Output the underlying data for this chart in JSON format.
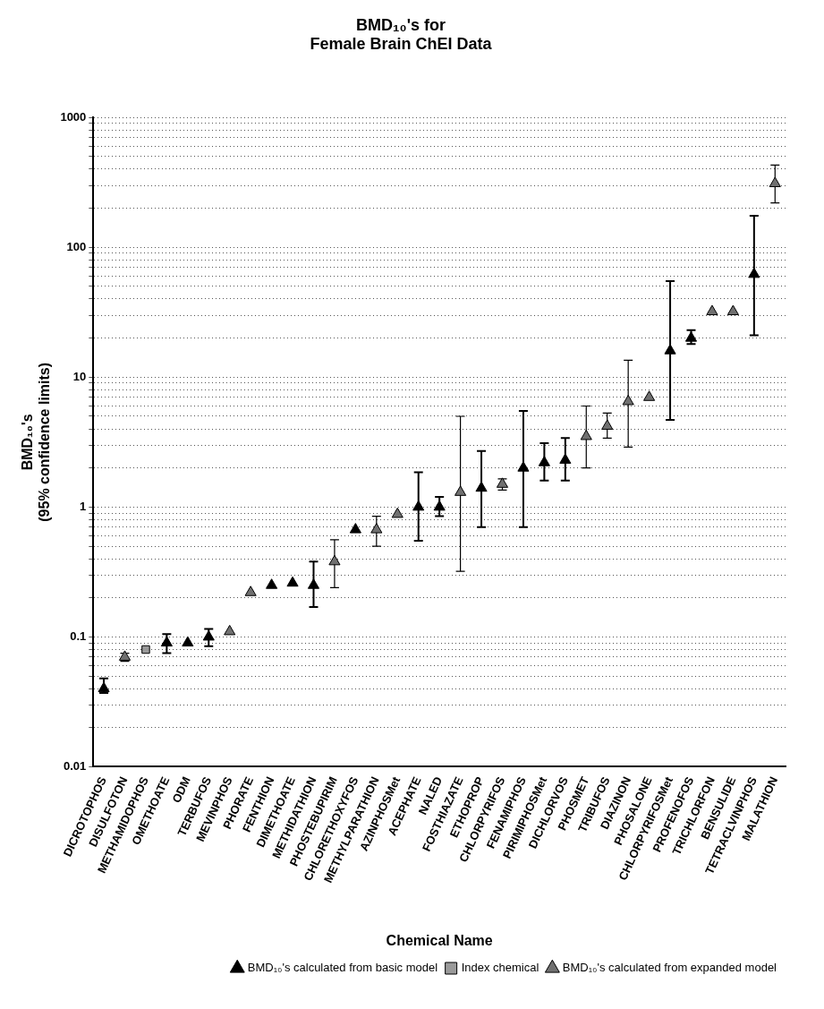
{
  "chart_data": {
    "type": "scatter",
    "title": "BMD₁₀'s for\nFemale Brain ChEI Data",
    "xlabel": "Chemical Name",
    "ylabel": "BMD₁₀'s\n(95% confidence limits)",
    "categories": [
      "DICROTOPHOS",
      "DISULFOTON",
      "METHAMIDOPHOS",
      "OMETHOATE",
      "ODM",
      "TERBUFOS",
      "MEVINPHOS",
      "PHORATE",
      "FENTHION",
      "DIMETHOATE",
      "METHIDATHION",
      "PHOSTEBUPIRIM",
      "CHLORETHOXYFOS",
      "METHYLPARATHION",
      "AZINPHOSMet",
      "ACEPHATE",
      "NALED",
      "FOSTHIAZATE",
      "ETHOPROP",
      "CHLORPYRIFOS",
      "FENAMIPHOS",
      "PIRIMIPHOSMet",
      "DICHLORVOS",
      "PHOSMET",
      "TRIBUFOS",
      "DIAZINON",
      "PHOSALONE",
      "CHLORPYRIFOSMet",
      "PROFENOFOS",
      "TRICHLORFON",
      "BENSULIDE",
      "TETRACLVINPHOS",
      "MALATHION"
    ],
    "series": [
      {
        "name": "BMD₁₀'s calculated from basic model",
        "color": "#000000",
        "marker": "triangle",
        "values": [
          0.04,
          null,
          null,
          0.09,
          0.09,
          0.1,
          null,
          null,
          0.25,
          0.26,
          0.25,
          null,
          0.67,
          null,
          null,
          1.0,
          1.0,
          null,
          1.4,
          null,
          2.0,
          2.2,
          2.3,
          null,
          null,
          null,
          null,
          16,
          20,
          null,
          null,
          62,
          null
        ],
        "errors": [
          [
            0.037,
            0.048
          ],
          null,
          null,
          [
            0.075,
            0.105
          ],
          null,
          [
            0.085,
            0.115
          ],
          null,
          null,
          null,
          null,
          [
            0.17,
            0.38
          ],
          null,
          null,
          null,
          null,
          [
            0.55,
            1.85
          ],
          [
            0.85,
            1.2
          ],
          null,
          [
            0.7,
            2.7
          ],
          null,
          [
            0.7,
            5.5
          ],
          [
            1.6,
            3.1
          ],
          [
            1.6,
            3.4
          ],
          null,
          null,
          null,
          null,
          [
            4.7,
            55
          ],
          [
            18,
            23
          ],
          null,
          null,
          [
            21,
            175
          ],
          null
        ]
      },
      {
        "name": "Index chemical",
        "color": "#9a9a9a",
        "marker": "square",
        "values": [
          null,
          null,
          0.08,
          null,
          null,
          null,
          null,
          null,
          null,
          null,
          null,
          null,
          null,
          null,
          null,
          null,
          null,
          null,
          null,
          null,
          null,
          null,
          null,
          null,
          null,
          null,
          null,
          null,
          null,
          null,
          null,
          null,
          null
        ]
      },
      {
        "name": "BMD₁₀'s calculated from expanded model",
        "color": "#707070",
        "marker": "triangle",
        "values": [
          null,
          0.07,
          null,
          null,
          null,
          null,
          0.11,
          0.22,
          null,
          null,
          null,
          0.38,
          null,
          0.67,
          0.88,
          null,
          null,
          1.3,
          null,
          1.5,
          null,
          null,
          null,
          3.5,
          4.2,
          6.5,
          7,
          null,
          null,
          32,
          32,
          null,
          310
        ],
        "errors": [
          null,
          [
            0.065,
            0.075
          ],
          null,
          null,
          null,
          null,
          null,
          null,
          null,
          null,
          null,
          [
            0.24,
            0.56
          ],
          null,
          [
            0.5,
            0.85
          ],
          null,
          null,
          null,
          [
            0.32,
            5
          ],
          null,
          [
            1.35,
            1.65
          ],
          null,
          null,
          null,
          [
            2,
            6
          ],
          [
            3.4,
            5.3
          ],
          [
            2.9,
            13.5
          ],
          null,
          null,
          null,
          null,
          null,
          null,
          [
            220,
            430
          ]
        ]
      }
    ],
    "log": "y",
    "ylim": [
      0.01,
      1000
    ],
    "yticks": [
      0.01,
      {
        "value": 0.02,
        "label": null
      },
      {
        "value": 0.03,
        "label": null
      },
      {
        "value": 0.04,
        "label": null
      },
      {
        "value": 0.05,
        "label": null
      },
      {
        "value": 0.06,
        "label": null
      },
      {
        "value": 0.07,
        "label": null
      },
      {
        "value": 0.08,
        "label": null
      },
      {
        "value": 0.09,
        "label": null
      },
      0.1,
      {
        "value": 0.2,
        "label": null
      },
      {
        "value": 0.3,
        "label": null
      },
      {
        "value": 0.4,
        "label": null
      },
      {
        "value": 0.5,
        "label": null
      },
      {
        "value": 0.6,
        "label": null
      },
      {
        "value": 0.7,
        "label": null
      },
      {
        "value": 0.8,
        "label": null
      },
      {
        "value": 0.9,
        "label": null
      },
      1,
      {
        "value": 2,
        "label": null
      },
      {
        "value": 3,
        "label": null
      },
      {
        "value": 4,
        "label": null
      },
      {
        "value": 5,
        "label": null
      },
      {
        "value": 6,
        "label": null
      },
      {
        "value": 7,
        "label": null
      },
      {
        "value": 8,
        "label": null
      },
      {
        "value": 9,
        "label": null
      },
      10,
      {
        "value": 20,
        "label": null
      },
      {
        "value": 30,
        "label": null
      },
      {
        "value": 40,
        "label": null
      },
      {
        "value": 50,
        "label": null
      },
      {
        "value": 60,
        "label": null
      },
      {
        "value": 70,
        "label": null
      },
      {
        "value": 80,
        "label": null
      },
      {
        "value": 90,
        "label": null
      },
      100,
      {
        "value": 200,
        "label": null
      },
      {
        "value": 300,
        "label": null
      },
      {
        "value": 400,
        "label": null
      },
      {
        "value": 500,
        "label": null
      },
      {
        "value": 600,
        "label": null
      },
      {
        "value": 700,
        "label": null
      },
      {
        "value": 800,
        "label": null
      },
      {
        "value": 900,
        "label": null
      },
      1000
    ],
    "grid": "y",
    "legend": "bottom right"
  }
}
